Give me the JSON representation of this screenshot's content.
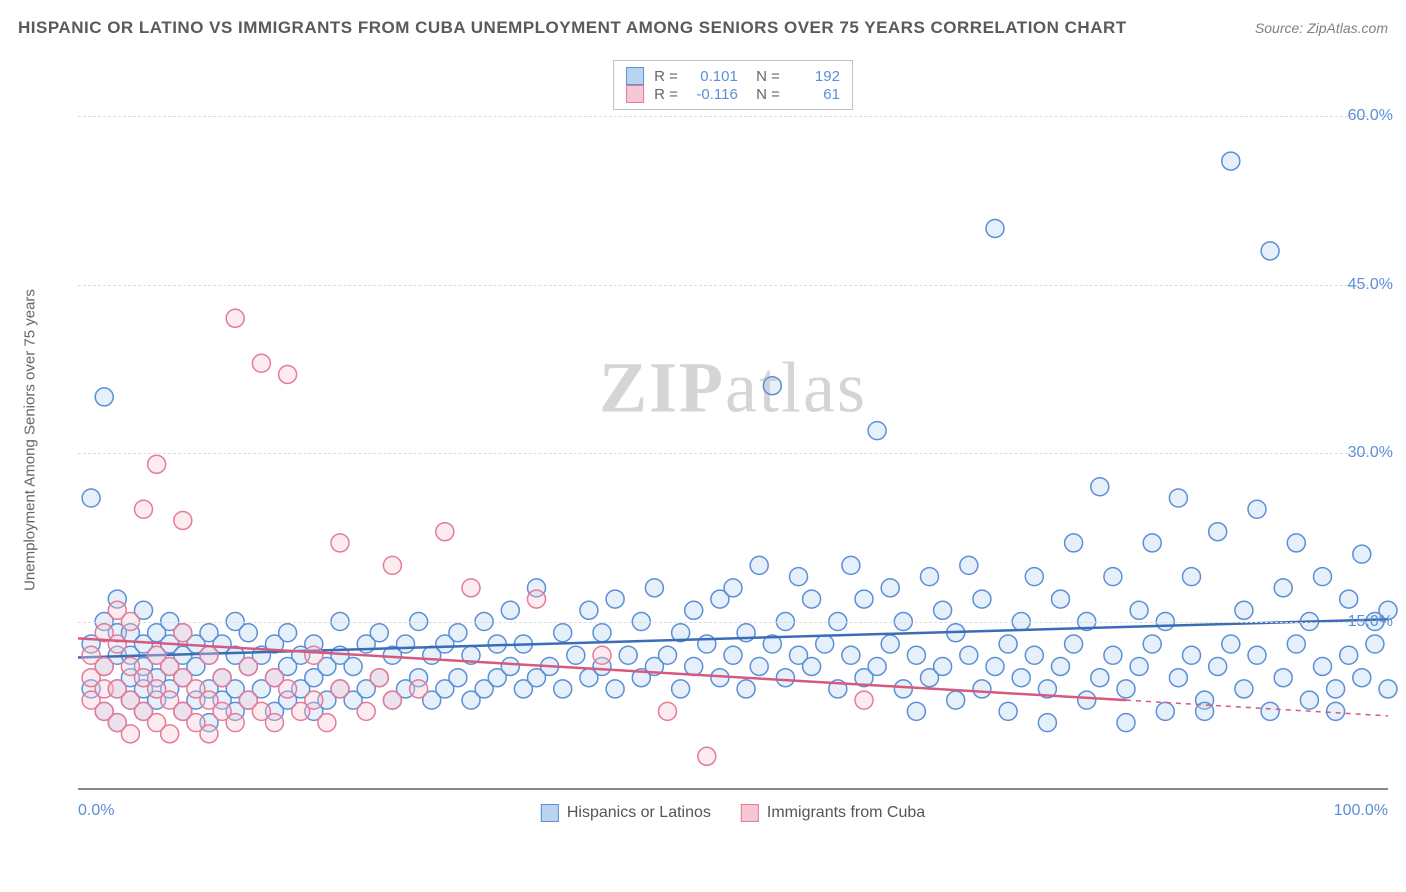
{
  "title": "HISPANIC OR LATINO VS IMMIGRANTS FROM CUBA UNEMPLOYMENT AMONG SENIORS OVER 75 YEARS CORRELATION CHART",
  "source": "Source: ZipAtlas.com",
  "watermark_a": "ZIP",
  "watermark_b": "atlas",
  "chart": {
    "type": "scatter",
    "y_label": "Unemployment Among Seniors over 75 years",
    "xlim": [
      0,
      100
    ],
    "ylim": [
      0,
      65
    ],
    "x_ticks": [
      {
        "v": 0,
        "label": "0.0%"
      },
      {
        "v": 100,
        "label": "100.0%"
      }
    ],
    "y_ticks": [
      {
        "v": 15,
        "label": "15.0%"
      },
      {
        "v": 30,
        "label": "30.0%"
      },
      {
        "v": 45,
        "label": "45.0%"
      },
      {
        "v": 60,
        "label": "60.0%"
      }
    ],
    "grid_color": "#dcdcdc",
    "axis_color": "#888888",
    "background_color": "#ffffff",
    "marker_radius": 9,
    "marker_fill_opacity": 0.35,
    "marker_stroke_width": 1.5,
    "series": [
      {
        "name": "Hispanics or Latinos",
        "color_fill": "#b8d4f0",
        "color_stroke": "#5b8fd6",
        "R": "0.101",
        "N": "192",
        "trend": {
          "x1": 0,
          "y1": 11.8,
          "x2": 100,
          "y2": 15.2,
          "dash_after": 100,
          "line_width": 2.5,
          "color": "#3a6db5"
        },
        "points": [
          [
            1,
            9
          ],
          [
            1,
            13
          ],
          [
            1,
            26
          ],
          [
            2,
            7
          ],
          [
            2,
            11
          ],
          [
            2,
            15
          ],
          [
            2,
            35
          ],
          [
            3,
            6
          ],
          [
            3,
            9
          ],
          [
            3,
            12
          ],
          [
            3,
            14
          ],
          [
            3,
            17
          ],
          [
            4,
            8
          ],
          [
            4,
            10
          ],
          [
            4,
            12
          ],
          [
            4,
            14
          ],
          [
            5,
            7
          ],
          [
            5,
            9
          ],
          [
            5,
            11
          ],
          [
            5,
            13
          ],
          [
            5,
            16
          ],
          [
            6,
            8
          ],
          [
            6,
            10
          ],
          [
            6,
            12
          ],
          [
            6,
            14
          ],
          [
            7,
            9
          ],
          [
            7,
            11
          ],
          [
            7,
            13
          ],
          [
            7,
            15
          ],
          [
            8,
            7
          ],
          [
            8,
            10
          ],
          [
            8,
            12
          ],
          [
            8,
            14
          ],
          [
            9,
            8
          ],
          [
            9,
            11
          ],
          [
            9,
            13
          ],
          [
            10,
            6
          ],
          [
            10,
            9
          ],
          [
            10,
            12
          ],
          [
            10,
            14
          ],
          [
            11,
            8
          ],
          [
            11,
            10
          ],
          [
            11,
            13
          ],
          [
            12,
            7
          ],
          [
            12,
            9
          ],
          [
            12,
            12
          ],
          [
            12,
            15
          ],
          [
            13,
            8
          ],
          [
            13,
            11
          ],
          [
            13,
            14
          ],
          [
            14,
            9
          ],
          [
            14,
            12
          ],
          [
            15,
            7
          ],
          [
            15,
            10
          ],
          [
            15,
            13
          ],
          [
            16,
            8
          ],
          [
            16,
            11
          ],
          [
            16,
            14
          ],
          [
            17,
            9
          ],
          [
            17,
            12
          ],
          [
            18,
            7
          ],
          [
            18,
            10
          ],
          [
            18,
            13
          ],
          [
            19,
            8
          ],
          [
            19,
            11
          ],
          [
            20,
            9
          ],
          [
            20,
            12
          ],
          [
            20,
            15
          ],
          [
            21,
            8
          ],
          [
            21,
            11
          ],
          [
            22,
            9
          ],
          [
            22,
            13
          ],
          [
            23,
            10
          ],
          [
            23,
            14
          ],
          [
            24,
            8
          ],
          [
            24,
            12
          ],
          [
            25,
            9
          ],
          [
            25,
            13
          ],
          [
            26,
            10
          ],
          [
            26,
            15
          ],
          [
            27,
            8
          ],
          [
            27,
            12
          ],
          [
            28,
            9
          ],
          [
            28,
            13
          ],
          [
            29,
            10
          ],
          [
            29,
            14
          ],
          [
            30,
            8
          ],
          [
            30,
            12
          ],
          [
            31,
            9
          ],
          [
            31,
            15
          ],
          [
            32,
            10
          ],
          [
            32,
            13
          ],
          [
            33,
            11
          ],
          [
            33,
            16
          ],
          [
            34,
            9
          ],
          [
            34,
            13
          ],
          [
            35,
            10
          ],
          [
            35,
            18
          ],
          [
            36,
            11
          ],
          [
            37,
            9
          ],
          [
            37,
            14
          ],
          [
            38,
            12
          ],
          [
            39,
            10
          ],
          [
            39,
            16
          ],
          [
            40,
            11
          ],
          [
            40,
            14
          ],
          [
            41,
            9
          ],
          [
            41,
            17
          ],
          [
            42,
            12
          ],
          [
            43,
            10
          ],
          [
            43,
            15
          ],
          [
            44,
            11
          ],
          [
            44,
            18
          ],
          [
            45,
            12
          ],
          [
            46,
            9
          ],
          [
            46,
            14
          ],
          [
            47,
            11
          ],
          [
            47,
            16
          ],
          [
            48,
            13
          ],
          [
            49,
            10
          ],
          [
            49,
            17
          ],
          [
            50,
            12
          ],
          [
            50,
            18
          ],
          [
            51,
            9
          ],
          [
            51,
            14
          ],
          [
            52,
            11
          ],
          [
            52,
            20
          ],
          [
            53,
            13
          ],
          [
            53,
            36
          ],
          [
            54,
            10
          ],
          [
            54,
            15
          ],
          [
            55,
            12
          ],
          [
            55,
            19
          ],
          [
            56,
            11
          ],
          [
            56,
            17
          ],
          [
            57,
            13
          ],
          [
            58,
            9
          ],
          [
            58,
            15
          ],
          [
            59,
            12
          ],
          [
            59,
            20
          ],
          [
            60,
            10
          ],
          [
            60,
            17
          ],
          [
            61,
            11
          ],
          [
            61,
            32
          ],
          [
            62,
            13
          ],
          [
            62,
            18
          ],
          [
            63,
            9
          ],
          [
            63,
            15
          ],
          [
            64,
            12
          ],
          [
            64,
            7
          ],
          [
            65,
            10
          ],
          [
            65,
            19
          ],
          [
            66,
            11
          ],
          [
            66,
            16
          ],
          [
            67,
            8
          ],
          [
            67,
            14
          ],
          [
            68,
            12
          ],
          [
            68,
            20
          ],
          [
            69,
            9
          ],
          [
            69,
            17
          ],
          [
            70,
            11
          ],
          [
            70,
            50
          ],
          [
            71,
            13
          ],
          [
            71,
            7
          ],
          [
            72,
            10
          ],
          [
            72,
            15
          ],
          [
            73,
            12
          ],
          [
            73,
            19
          ],
          [
            74,
            9
          ],
          [
            74,
            6
          ],
          [
            75,
            11
          ],
          [
            75,
            17
          ],
          [
            76,
            13
          ],
          [
            76,
            22
          ],
          [
            77,
            8
          ],
          [
            77,
            15
          ],
          [
            78,
            10
          ],
          [
            78,
            27
          ],
          [
            79,
            12
          ],
          [
            79,
            19
          ],
          [
            80,
            9
          ],
          [
            80,
            6
          ],
          [
            81,
            11
          ],
          [
            81,
            16
          ],
          [
            82,
            13
          ],
          [
            82,
            22
          ],
          [
            83,
            7
          ],
          [
            83,
            15
          ],
          [
            84,
            10
          ],
          [
            84,
            26
          ],
          [
            85,
            12
          ],
          [
            85,
            19
          ],
          [
            86,
            8
          ],
          [
            86,
            7
          ],
          [
            87,
            11
          ],
          [
            87,
            23
          ],
          [
            88,
            13
          ],
          [
            88,
            56
          ],
          [
            89,
            9
          ],
          [
            89,
            16
          ],
          [
            90,
            12
          ],
          [
            90,
            25
          ],
          [
            91,
            7
          ],
          [
            91,
            48
          ],
          [
            92,
            10
          ],
          [
            92,
            18
          ],
          [
            93,
            13
          ],
          [
            93,
            22
          ],
          [
            94,
            8
          ],
          [
            94,
            15
          ],
          [
            95,
            11
          ],
          [
            95,
            19
          ],
          [
            96,
            9
          ],
          [
            96,
            7
          ],
          [
            97,
            12
          ],
          [
            97,
            17
          ],
          [
            98,
            10
          ],
          [
            98,
            21
          ],
          [
            99,
            13
          ],
          [
            99,
            15
          ],
          [
            100,
            9
          ],
          [
            100,
            16
          ]
        ]
      },
      {
        "name": "Immigrants from Cuba",
        "color_fill": "#f5c8d4",
        "color_stroke": "#e67a9a",
        "R": "-0.116",
        "N": "61",
        "trend": {
          "x1": 0,
          "y1": 13.5,
          "x2": 80,
          "y2": 8.0,
          "dash_after": 80,
          "dash_to_x": 100,
          "dash_to_y": 6.6,
          "line_width": 2.5,
          "color": "#d65a7e"
        },
        "points": [
          [
            1,
            8
          ],
          [
            1,
            10
          ],
          [
            1,
            12
          ],
          [
            2,
            7
          ],
          [
            2,
            9
          ],
          [
            2,
            11
          ],
          [
            2,
            14
          ],
          [
            3,
            6
          ],
          [
            3,
            9
          ],
          [
            3,
            13
          ],
          [
            3,
            16
          ],
          [
            4,
            5
          ],
          [
            4,
            8
          ],
          [
            4,
            11
          ],
          [
            4,
            15
          ],
          [
            5,
            7
          ],
          [
            5,
            10
          ],
          [
            5,
            25
          ],
          [
            6,
            6
          ],
          [
            6,
            9
          ],
          [
            6,
            12
          ],
          [
            6,
            29
          ],
          [
            7,
            5
          ],
          [
            7,
            8
          ],
          [
            7,
            11
          ],
          [
            8,
            7
          ],
          [
            8,
            10
          ],
          [
            8,
            14
          ],
          [
            8,
            24
          ],
          [
            9,
            6
          ],
          [
            9,
            9
          ],
          [
            10,
            5
          ],
          [
            10,
            8
          ],
          [
            10,
            12
          ],
          [
            11,
            7
          ],
          [
            11,
            10
          ],
          [
            12,
            6
          ],
          [
            12,
            42
          ],
          [
            13,
            8
          ],
          [
            13,
            11
          ],
          [
            14,
            7
          ],
          [
            14,
            38
          ],
          [
            15,
            6
          ],
          [
            15,
            10
          ],
          [
            16,
            37
          ],
          [
            16,
            9
          ],
          [
            17,
            7
          ],
          [
            18,
            8
          ],
          [
            18,
            12
          ],
          [
            19,
            6
          ],
          [
            20,
            9
          ],
          [
            20,
            22
          ],
          [
            22,
            7
          ],
          [
            23,
            10
          ],
          [
            24,
            8
          ],
          [
            24,
            20
          ],
          [
            26,
            9
          ],
          [
            28,
            23
          ],
          [
            30,
            18
          ],
          [
            35,
            17
          ],
          [
            40,
            12
          ],
          [
            45,
            7
          ],
          [
            48,
            3
          ],
          [
            60,
            8
          ]
        ]
      }
    ],
    "bottom_legend": [
      {
        "swatch": "blue",
        "label": "Hispanics or Latinos"
      },
      {
        "swatch": "pink",
        "label": "Immigrants from Cuba"
      }
    ]
  }
}
